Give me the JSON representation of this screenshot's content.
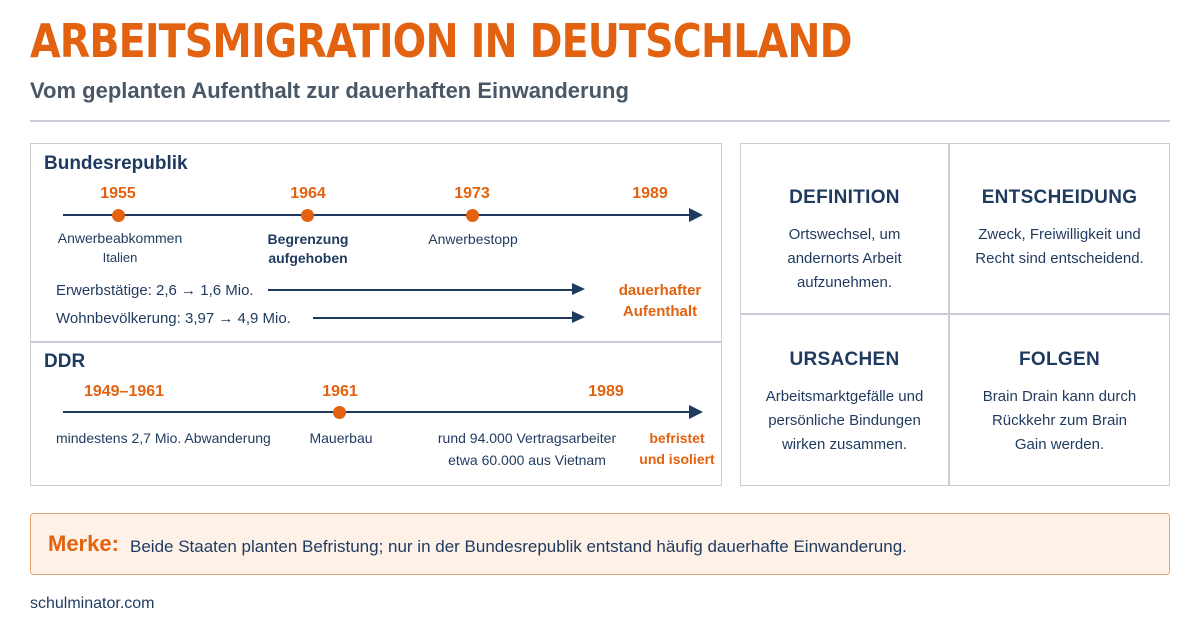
{
  "header": {
    "title": "ARBEITSMIGRATION IN DEUTSCHLAND",
    "subtitle": "Vom geplanten Aufenthalt zur dauerhaften Einwanderung"
  },
  "brd": {
    "label": "Bundesrepublik",
    "events": [
      {
        "year": "1955",
        "label": "Anwerbeabkommen",
        "sublabel": "Italien"
      },
      {
        "year": "1964",
        "label": "Begrenzung\naufgehoben",
        "sublabel": ""
      },
      {
        "year": "1973",
        "label": "Anwerbestopp",
        "sublabel": ""
      },
      {
        "year": "1989",
        "label": "",
        "sublabel": ""
      }
    ],
    "stats": [
      "Erwerbstätige: 2,6 → 1,6 Mio.",
      "Wohnbevölkerung: 3,97 → 4,9 Mio."
    ],
    "result_line1": "dauerhafter",
    "result_line2": "Aufenthalt"
  },
  "ddr": {
    "label": "DDR",
    "events": [
      {
        "year": "1949–1961",
        "label": "mindestens 2,7 Mio. Abwanderung"
      },
      {
        "year": "1961",
        "label": "Mauerbau"
      },
      {
        "year": "1989",
        "label_line1": "rund 94.000 Vertragsarbeiter",
        "label_line2": "etwa 60.000 aus Vietnam"
      }
    ],
    "result_line1": "befristet",
    "result_line2": "und isoliert"
  },
  "grid": [
    {
      "title": "DEFINITION",
      "text": "Ortswechsel, um andernorts Arbeit aufzunehmen."
    },
    {
      "title": "ENTSCHEIDUNG",
      "text": "Zweck, Freiwilligkeit und Recht sind entscheidend."
    },
    {
      "title": "URSACHEN",
      "text": "Arbeitsmarktgefälle und persönliche Bindungen wirken zusammen."
    },
    {
      "title": "FOLGEN",
      "text": "Brain Drain kann durch Rückkehr zum Brain Gain werden."
    }
  ],
  "merke": {
    "label": "Merke:",
    "text": "Beide Staaten planten Befristung; nur in der Bundesrepublik entstand häufig dauerhafte Einwanderung."
  },
  "footer": "schulminator.com",
  "colors": {
    "accent": "#e2620f",
    "navy": "#1f3a5f"
  }
}
